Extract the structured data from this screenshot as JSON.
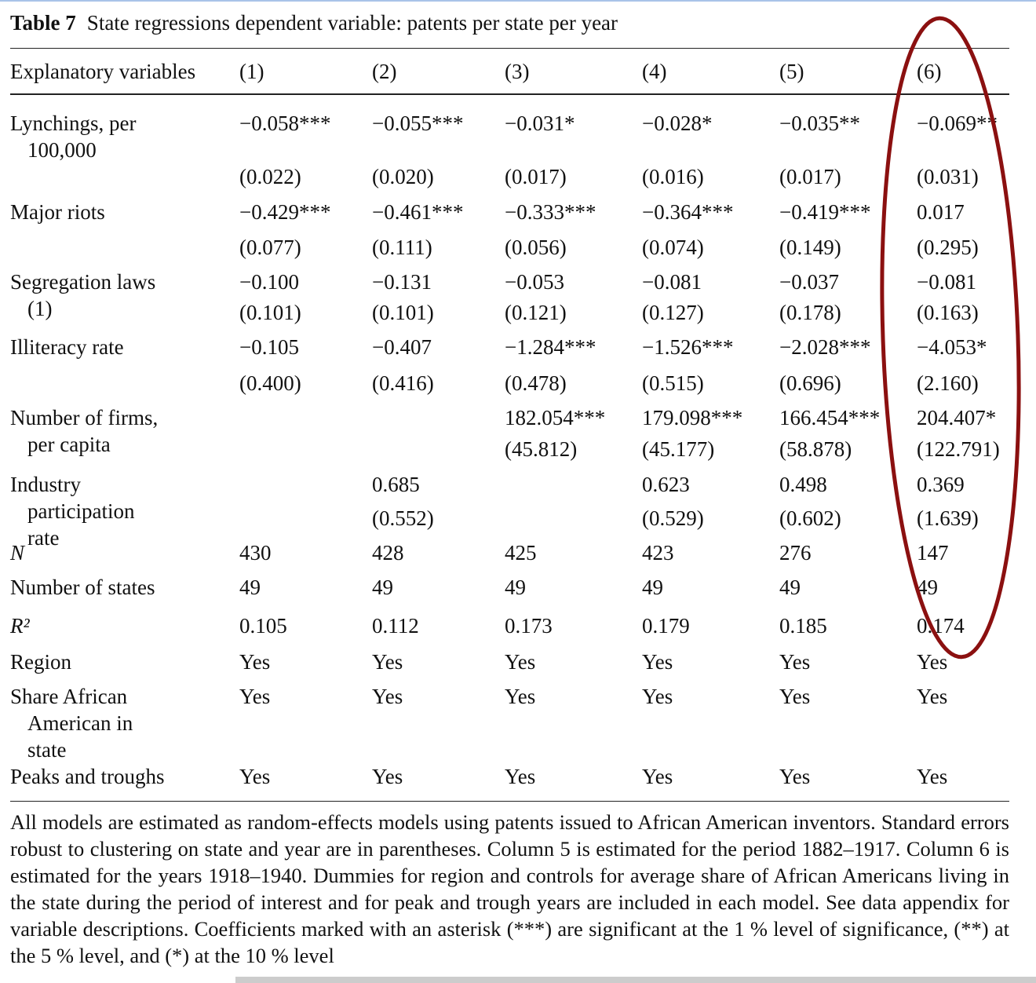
{
  "table": {
    "label": "Table 7",
    "title": "State regressions dependent variable: patents per state per year",
    "header": [
      "Explanatory variables",
      "(1)",
      "(2)",
      "(3)",
      "(4)",
      "(5)",
      "(6)"
    ],
    "rows": [
      {
        "label_lines": [
          "Lynchings, per",
          "100,000"
        ],
        "cells": [
          {
            "estimate": "−0.058***",
            "se": "(0.022)"
          },
          {
            "estimate": "−0.055***",
            "se": "(0.020)"
          },
          {
            "estimate": "−0.031*",
            "se": "(0.017)"
          },
          {
            "estimate": "−0.028*",
            "se": "(0.016)"
          },
          {
            "estimate": "−0.035**",
            "se": "(0.017)"
          },
          {
            "estimate": "−0.069**",
            "se": "(0.031)"
          }
        ]
      },
      {
        "label_lines": [
          "Major riots"
        ],
        "cells": [
          {
            "estimate": "−0.429***",
            "se": "(0.077)"
          },
          {
            "estimate": "−0.461***",
            "se": "(0.111)"
          },
          {
            "estimate": "−0.333***",
            "se": "(0.056)"
          },
          {
            "estimate": "−0.364***",
            "se": "(0.074)"
          },
          {
            "estimate": "−0.419***",
            "se": "(0.149)"
          },
          {
            "estimate": "0.017",
            "se": "(0.295)"
          }
        ]
      },
      {
        "label_lines": [
          "Segregation laws",
          "(1)"
        ],
        "cells": [
          {
            "estimate": "−0.100",
            "se": "(0.101)"
          },
          {
            "estimate": "−0.131",
            "se": "(0.101)"
          },
          {
            "estimate": "−0.053",
            "se": "(0.121)"
          },
          {
            "estimate": "−0.081",
            "se": "(0.127)"
          },
          {
            "estimate": "−0.037",
            "se": "(0.178)"
          },
          {
            "estimate": "−0.081",
            "se": "(0.163)"
          }
        ]
      },
      {
        "label_lines": [
          "Illiteracy rate"
        ],
        "cells": [
          {
            "estimate": "−0.105",
            "se": "(0.400)"
          },
          {
            "estimate": "−0.407",
            "se": "(0.416)"
          },
          {
            "estimate": "−1.284***",
            "se": "(0.478)"
          },
          {
            "estimate": "−1.526***",
            "se": "(0.515)"
          },
          {
            "estimate": "−2.028***",
            "se": "(0.696)"
          },
          {
            "estimate": "−4.053*",
            "se": "(2.160)"
          }
        ]
      },
      {
        "label_lines": [
          "Number of firms,",
          "per capita"
        ],
        "cells": [
          null,
          null,
          {
            "estimate": "182.054***",
            "se": "(45.812)"
          },
          {
            "estimate": "179.098***",
            "se": "(45.177)"
          },
          {
            "estimate": "166.454***",
            "se": "(58.878)"
          },
          {
            "estimate": "204.407*",
            "se": "(122.791)"
          }
        ]
      },
      {
        "label_lines": [
          "Industry",
          "participation",
          "rate"
        ],
        "cells": [
          null,
          {
            "estimate": "0.685",
            "se": "(0.552)"
          },
          null,
          {
            "estimate": "0.623",
            "se": "(0.529)"
          },
          {
            "estimate": "0.498",
            "se": "(0.602)"
          },
          {
            "estimate": "0.369",
            "se": "(1.639)"
          }
        ]
      },
      {
        "label_lines": [
          "N"
        ],
        "cells": [
          {
            "estimate": "430"
          },
          {
            "estimate": "428"
          },
          {
            "estimate": "425"
          },
          {
            "estimate": "423"
          },
          {
            "estimate": "276"
          },
          {
            "estimate": "147"
          }
        ]
      },
      {
        "label_lines": [
          "Number of states"
        ],
        "cells": [
          {
            "estimate": "49"
          },
          {
            "estimate": "49"
          },
          {
            "estimate": "49"
          },
          {
            "estimate": "49"
          },
          {
            "estimate": "49"
          },
          {
            "estimate": "49"
          }
        ]
      },
      {
        "label_lines": [
          "R²"
        ],
        "cells": [
          {
            "estimate": "0.105"
          },
          {
            "estimate": "0.112"
          },
          {
            "estimate": "0.173"
          },
          {
            "estimate": "0.179"
          },
          {
            "estimate": "0.185"
          },
          {
            "estimate": "0.174"
          }
        ]
      },
      {
        "label_lines": [
          "Region"
        ],
        "cells": [
          {
            "estimate": "Yes"
          },
          {
            "estimate": "Yes"
          },
          {
            "estimate": "Yes"
          },
          {
            "estimate": "Yes"
          },
          {
            "estimate": "Yes"
          },
          {
            "estimate": "Yes"
          }
        ]
      },
      {
        "label_lines": [
          "Share African",
          "American in",
          "state"
        ],
        "cells": [
          {
            "estimate": "Yes"
          },
          {
            "estimate": "Yes"
          },
          {
            "estimate": "Yes"
          },
          {
            "estimate": "Yes"
          },
          {
            "estimate": "Yes"
          },
          {
            "estimate": "Yes"
          }
        ]
      },
      {
        "label_lines": [
          "Peaks and troughs"
        ],
        "cells": [
          {
            "estimate": "Yes"
          },
          {
            "estimate": "Yes"
          },
          {
            "estimate": "Yes"
          },
          {
            "estimate": "Yes"
          },
          {
            "estimate": "Yes"
          },
          {
            "estimate": "Yes"
          }
        ]
      }
    ],
    "footnote": "All models are estimated as random-effects models using patents issued to African American inventors. Standard errors robust to clustering on state and year are in parentheses. Column 5 is estimated for the period 1882–1917. Column 6 is estimated for the years 1918–1940. Dummies for region and controls for average share of African Americans living in the state during the period of interest and for peak and trough years are included in each model. See data appendix for variable descriptions. Coefficients marked with an asterisk (***) are significant at the 1 % level of significance, (**) at the 5 % level, and (*) at the 10 % level"
  }
}
